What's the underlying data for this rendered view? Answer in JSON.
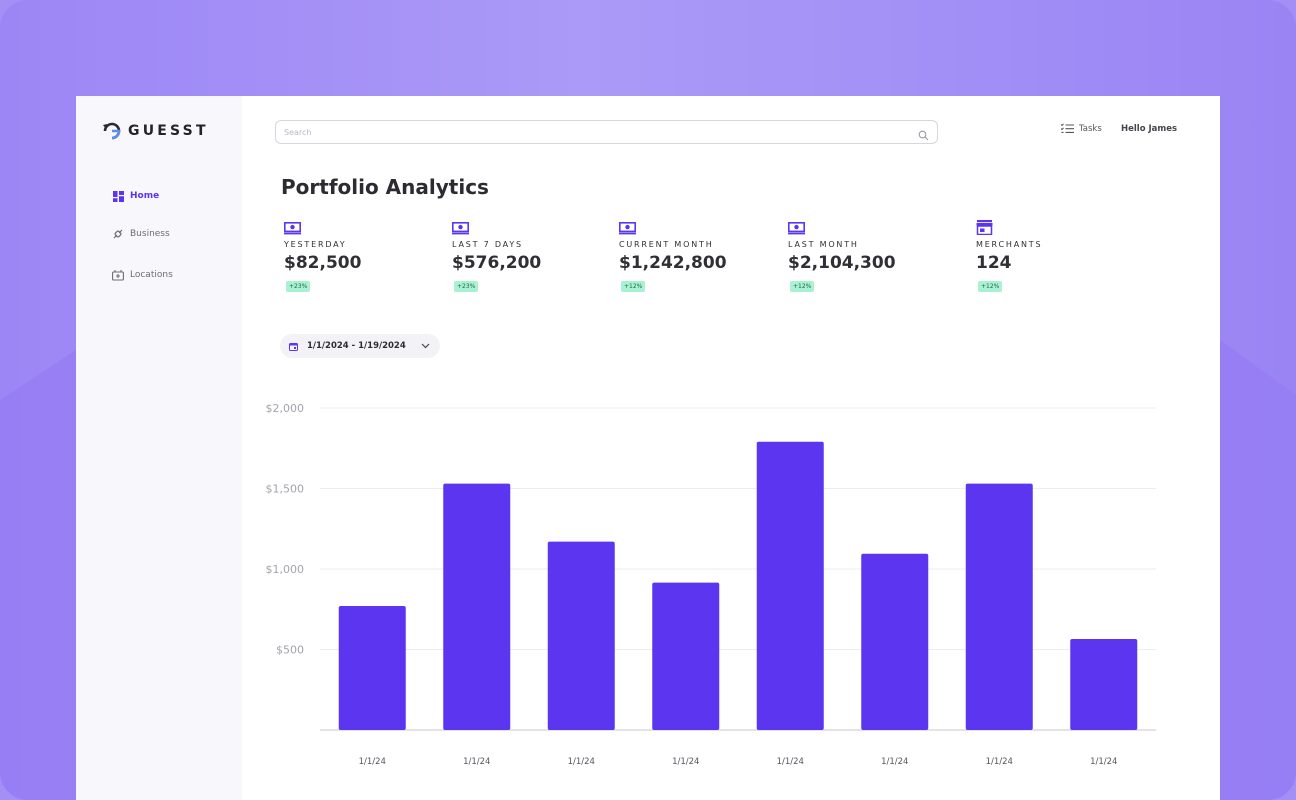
{
  "brand": {
    "name": "GUESST",
    "accent": "#5b35ef"
  },
  "search": {
    "placeholder": "Search"
  },
  "header": {
    "tasks_label": "Tasks",
    "greeting": "Hello James"
  },
  "sidebar": {
    "items": [
      {
        "label": "Home",
        "icon": "dashboard-icon",
        "active": true
      },
      {
        "label": "Business",
        "icon": "link-icon",
        "active": false
      },
      {
        "label": "Locations",
        "icon": "location-board-icon",
        "active": false
      }
    ]
  },
  "page_title": "Portfolio Analytics",
  "stats": [
    {
      "label": "YESTERDAY",
      "value": "$82,500",
      "change": "+23%",
      "icon": "cash-icon"
    },
    {
      "label": "LAST 7 DAYS",
      "value": "$576,200",
      "change": "+23%",
      "icon": "cash-icon"
    },
    {
      "label": "CURRENT MONTH",
      "value": "$1,242,800",
      "change": "+12%",
      "icon": "cash-icon"
    },
    {
      "label": "LAST MONTH",
      "value": "$2,104,300",
      "change": "+12%",
      "icon": "cash-icon"
    },
    {
      "label": "MERCHANTS",
      "value": "124",
      "change": "+12%",
      "icon": "store-icon"
    }
  ],
  "date_range": {
    "label": "1/1/2024 - 1/19/2024"
  },
  "chart_data": {
    "type": "bar",
    "categories": [
      "1/1/24",
      "1/1/24",
      "1/1/24",
      "1/1/24",
      "1/1/24",
      "1/1/24",
      "1/1/24",
      "1/1/24"
    ],
    "values": [
      770,
      1530,
      1170,
      915,
      1790,
      1095,
      1530,
      565
    ],
    "ylim": [
      0,
      2000
    ],
    "yticks": [
      500,
      1000,
      1500,
      2000
    ],
    "ytick_labels": [
      "$500",
      "$1,000",
      "$1,500",
      "$2,000"
    ],
    "color": "#5b35ef",
    "grid": true,
    "title": "",
    "xlabel": "",
    "ylabel": ""
  }
}
